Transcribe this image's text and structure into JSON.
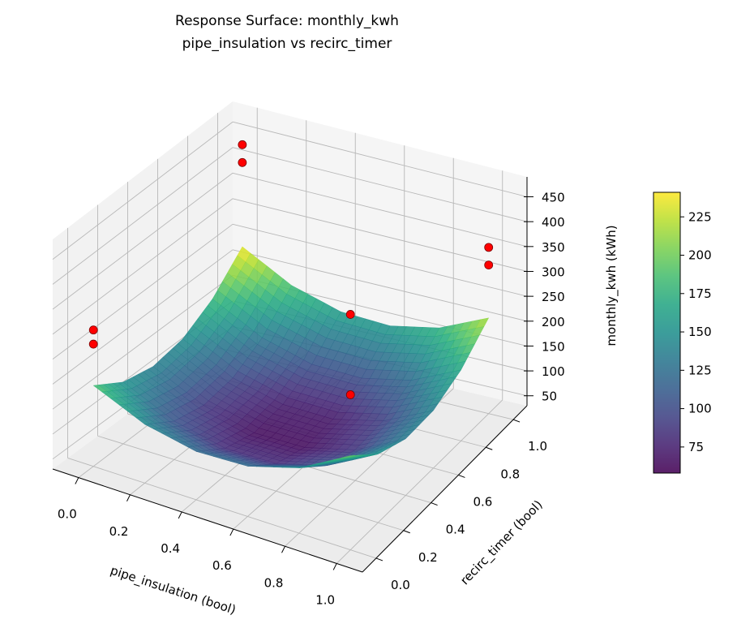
{
  "chart_data": {
    "type": "surface3d",
    "title_lines": [
      "Response Surface: monthly_kwh",
      "pipe_insulation vs recirc_timer"
    ],
    "xlabel": "pipe_insulation (bool)",
    "ylabel": "recirc_timer (bool)",
    "zlabel": "monthly_kwh (kWh)",
    "xlim": [
      -0.1,
      1.1
    ],
    "ylim": [
      -0.1,
      1.1
    ],
    "zlim": [
      30,
      490
    ],
    "x_ticks": [
      "0.0",
      "0.2",
      "0.4",
      "0.6",
      "0.8",
      "1.0"
    ],
    "y_ticks": [
      "0.0",
      "0.2",
      "0.4",
      "0.6",
      "0.8",
      "1.0"
    ],
    "z_ticks": [
      "50",
      "100",
      "150",
      "200",
      "250",
      "300",
      "350",
      "400",
      "450"
    ],
    "grid": true,
    "colormap": "viridis",
    "surface": {
      "x": [
        0,
        0.2,
        0.4,
        0.6,
        0.8,
        1.0
      ],
      "y": [
        0,
        0.2,
        0.4,
        0.6,
        0.8,
        1.0
      ],
      "z": [
        [
          190,
          152,
          138,
          148,
          182,
          240
        ],
        [
          144,
          105,
          90,
          98,
          131,
          188
        ],
        [
          122,
          82,
          65,
          73,
          104,
          160
        ],
        [
          124,
          82,
          65,
          71,
          102,
          156
        ],
        [
          150,
          107,
          88,
          94,
          123,
          176
        ],
        [
          200,
          156,
          136,
          140,
          168,
          220
        ]
      ]
    },
    "points": [
      {
        "x": 0,
        "y": 0,
        "z": 300
      },
      {
        "x": 0,
        "y": 0,
        "z": 272
      },
      {
        "x": 0,
        "y": 1,
        "z": 440
      },
      {
        "x": 0,
        "y": 1,
        "z": 405
      },
      {
        "x": 1,
        "y": 1,
        "z": 360
      },
      {
        "x": 1,
        "y": 1,
        "z": 325
      },
      {
        "x": 1,
        "y": 0,
        "z": 455
      },
      {
        "x": 1,
        "y": 0,
        "z": 310
      }
    ],
    "point_color": "#ff0000",
    "colorbar": {
      "clim": [
        58,
        241
      ],
      "ticks": [
        "75",
        "100",
        "125",
        "150",
        "175",
        "200",
        "225"
      ]
    }
  }
}
